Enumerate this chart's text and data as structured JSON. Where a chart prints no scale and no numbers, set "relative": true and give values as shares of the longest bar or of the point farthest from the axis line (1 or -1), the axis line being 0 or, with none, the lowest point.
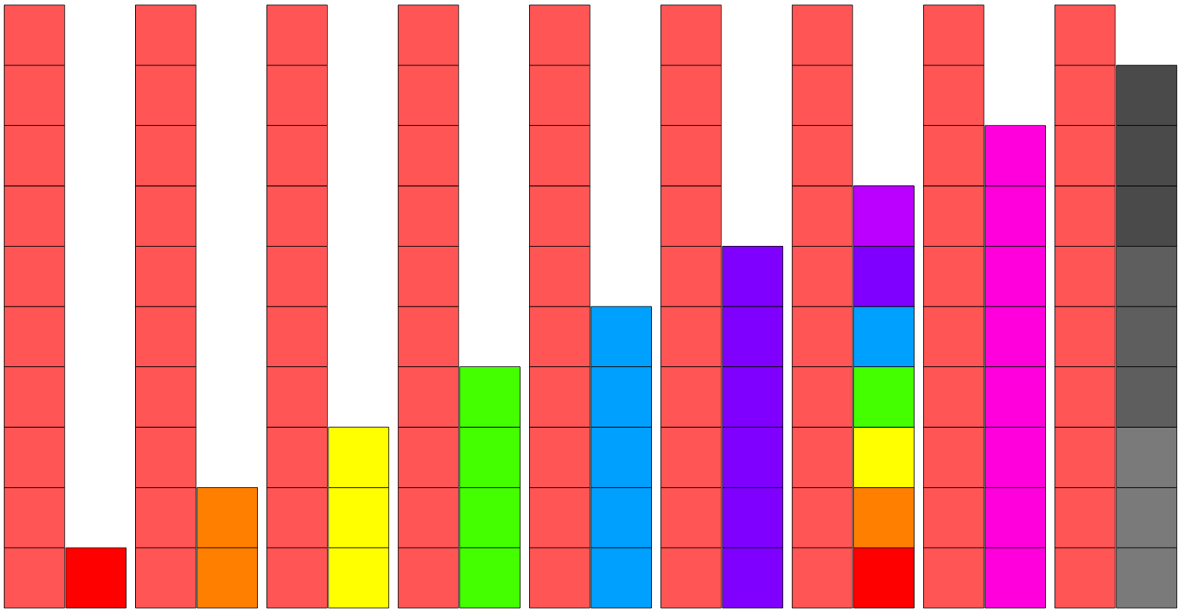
{
  "chart_data": {
    "type": "bar",
    "stacked": true,
    "relative": true,
    "categories": [
      null,
      null,
      null,
      null,
      null,
      null,
      null,
      null,
      null,
      null,
      null,
      null,
      null,
      null,
      null,
      null,
      null,
      null
    ],
    "series": [
      {
        "values": [
          0.1,
          0.1,
          0.1,
          0.1,
          0.1,
          0.1,
          0.1,
          0.1,
          0.1,
          0.1,
          0.1,
          0.1,
          0.1,
          0.1,
          0.1,
          0.1,
          0.1,
          0.1
        ],
        "colors": [
          "#ff5555",
          "#ff0000",
          "#ff5555",
          "#ff8000",
          "#ff5555",
          "#ffff00",
          "#ff5555",
          "#44ff00",
          "#ff5555",
          "#00a0ff",
          "#ff5555",
          "#7f00ff",
          "#ff5555",
          "#ff0000",
          "#ff5555",
          "#ff00dd",
          "#ff5555",
          "#7a7a7a"
        ]
      },
      {
        "values": [
          0.1,
          null,
          0.1,
          0.1,
          0.1,
          0.1,
          0.1,
          0.1,
          0.1,
          0.1,
          0.1,
          0.1,
          0.1,
          0.1,
          0.1,
          0.1,
          0.1,
          0.1
        ],
        "colors": [
          "#ff5555",
          null,
          "#ff5555",
          "#ff8000",
          "#ff5555",
          "#ffff00",
          "#ff5555",
          "#44ff00",
          "#ff5555",
          "#00a0ff",
          "#ff5555",
          "#7f00ff",
          "#ff5555",
          "#ff8000",
          "#ff5555",
          "#ff00dd",
          "#ff5555",
          "#7a7a7a"
        ]
      },
      {
        "values": [
          0.1,
          null,
          0.1,
          null,
          0.1,
          0.1,
          0.1,
          0.1,
          0.1,
          0.1,
          0.1,
          0.1,
          0.1,
          0.1,
          0.1,
          0.1,
          0.1,
          0.1
        ],
        "colors": [
          "#ff5555",
          null,
          "#ff5555",
          null,
          "#ff5555",
          "#ffff00",
          "#ff5555",
          "#44ff00",
          "#ff5555",
          "#00a0ff",
          "#ff5555",
          "#7f00ff",
          "#ff5555",
          "#ffff00",
          "#ff5555",
          "#ff00dd",
          "#ff5555",
          "#7a7a7a"
        ]
      },
      {
        "values": [
          0.1,
          null,
          0.1,
          null,
          0.1,
          null,
          0.1,
          0.1,
          0.1,
          0.1,
          0.1,
          0.1,
          0.1,
          0.1,
          0.1,
          0.1,
          0.1,
          0.1
        ],
        "colors": [
          "#ff5555",
          null,
          "#ff5555",
          null,
          "#ff5555",
          null,
          "#ff5555",
          "#44ff00",
          "#ff5555",
          "#00a0ff",
          "#ff5555",
          "#7f00ff",
          "#ff5555",
          "#44ff00",
          "#ff5555",
          "#ff00dd",
          "#ff5555",
          "#5e5e5e"
        ]
      },
      {
        "values": [
          0.1,
          null,
          0.1,
          null,
          0.1,
          null,
          0.1,
          null,
          0.1,
          0.1,
          0.1,
          0.1,
          0.1,
          0.1,
          0.1,
          0.1,
          0.1,
          0.1
        ],
        "colors": [
          "#ff5555",
          null,
          "#ff5555",
          null,
          "#ff5555",
          null,
          "#ff5555",
          null,
          "#ff5555",
          "#00a0ff",
          "#ff5555",
          "#7f00ff",
          "#ff5555",
          "#00a0ff",
          "#ff5555",
          "#ff00dd",
          "#ff5555",
          "#5e5e5e"
        ]
      },
      {
        "values": [
          0.1,
          null,
          0.1,
          null,
          0.1,
          null,
          0.1,
          null,
          0.1,
          null,
          0.1,
          0.1,
          0.1,
          0.1,
          0.1,
          0.1,
          0.1,
          0.1
        ],
        "colors": [
          "#ff5555",
          null,
          "#ff5555",
          null,
          "#ff5555",
          null,
          "#ff5555",
          null,
          "#ff5555",
          null,
          "#ff5555",
          "#7f00ff",
          "#ff5555",
          "#7f00ff",
          "#ff5555",
          "#ff00dd",
          "#ff5555",
          "#5e5e5e"
        ]
      },
      {
        "values": [
          0.1,
          null,
          0.1,
          null,
          0.1,
          null,
          0.1,
          null,
          0.1,
          null,
          0.1,
          null,
          0.1,
          0.1,
          0.1,
          0.1,
          0.1,
          0.1
        ],
        "colors": [
          "#ff5555",
          null,
          "#ff5555",
          null,
          "#ff5555",
          null,
          "#ff5555",
          null,
          "#ff5555",
          null,
          "#ff5555",
          null,
          "#ff5555",
          "#bb00ff",
          "#ff5555",
          "#ff00dd",
          "#ff5555",
          "#4a4a4a"
        ]
      },
      {
        "values": [
          0.1,
          null,
          0.1,
          null,
          0.1,
          null,
          0.1,
          null,
          0.1,
          null,
          0.1,
          null,
          0.1,
          null,
          0.1,
          0.1,
          0.1,
          0.1
        ],
        "colors": [
          "#ff5555",
          null,
          "#ff5555",
          null,
          "#ff5555",
          null,
          "#ff5555",
          null,
          "#ff5555",
          null,
          "#ff5555",
          null,
          "#ff5555",
          null,
          "#ff5555",
          "#ff00dd",
          "#ff5555",
          "#4a4a4a"
        ]
      },
      {
        "values": [
          0.1,
          null,
          0.1,
          null,
          0.1,
          null,
          0.1,
          null,
          0.1,
          null,
          0.1,
          null,
          0.1,
          null,
          0.1,
          null,
          0.1,
          0.1
        ],
        "colors": [
          "#ff5555",
          null,
          "#ff5555",
          null,
          "#ff5555",
          null,
          "#ff5555",
          null,
          "#ff5555",
          null,
          "#ff5555",
          null,
          "#ff5555",
          null,
          "#ff5555",
          null,
          "#ff5555",
          "#4a4a4a"
        ]
      },
      {
        "values": [
          0.1,
          null,
          0.1,
          null,
          0.1,
          null,
          0.1,
          null,
          0.1,
          null,
          0.1,
          null,
          0.1,
          null,
          0.1,
          null,
          0.1,
          null
        ],
        "colors": [
          "#ff5555",
          null,
          "#ff5555",
          null,
          "#ff5555",
          null,
          "#ff5555",
          null,
          "#ff5555",
          null,
          "#ff5555",
          null,
          "#ff5555",
          null,
          "#ff5555",
          null,
          "#ff5555",
          null
        ]
      }
    ]
  }
}
